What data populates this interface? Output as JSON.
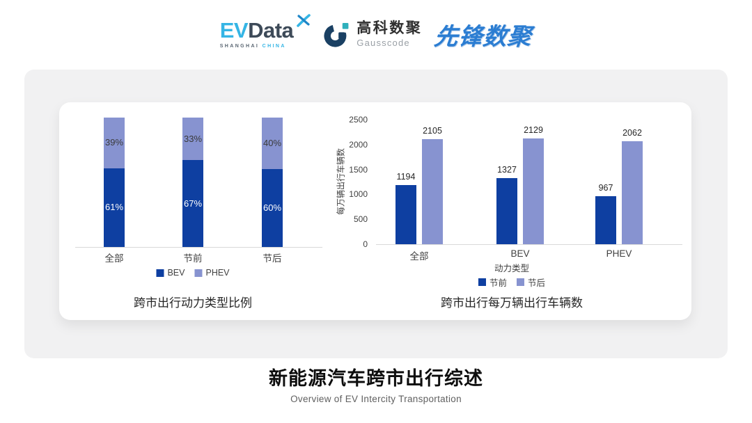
{
  "header": {
    "evdata_logo": {
      "part1": "EV",
      "part2": "Data",
      "sub_left": "SHANGHAI",
      "sub_right": "CHINA"
    },
    "gausscode_logo": {
      "name_cn": "高科数聚",
      "name_en": "Gausscode"
    },
    "pioneer_logo": {
      "text": "先锋数聚"
    }
  },
  "chart_data": [
    {
      "type": "bar",
      "variant": "stacked-percent",
      "title": "跨市出行动力类型比例",
      "categories": [
        "全部",
        "节前",
        "节后"
      ],
      "series": [
        {
          "name": "BEV",
          "values": [
            61,
            67,
            60
          ],
          "color": "#0e3fa1",
          "label_color": "#ffffff"
        },
        {
          "name": "PHEV",
          "values": [
            39,
            33,
            40
          ],
          "color": "#8793d0",
          "label_color": "#3a3a3a"
        }
      ],
      "value_suffix": "%",
      "ylim": [
        0,
        100
      ],
      "grid": false,
      "legend_position": "bottom"
    },
    {
      "type": "bar",
      "variant": "grouped",
      "title": "跨市出行每万辆出行车辆数",
      "xlabel": "动力类型",
      "ylabel": "每万辆出行车辆数",
      "categories": [
        "全部",
        "BEV",
        "PHEV"
      ],
      "series": [
        {
          "name": "节前",
          "values": [
            1194,
            1327,
            967
          ],
          "color": "#0e3fa1"
        },
        {
          "name": "节后",
          "values": [
            2105,
            2129,
            2062
          ],
          "color": "#8793d0"
        }
      ],
      "ylim": [
        0,
        2500
      ],
      "yticks": [
        0,
        500,
        1000,
        1500,
        2000,
        2500
      ],
      "grid": false,
      "legend_position": "bottom"
    }
  ],
  "footer": {
    "title": "新能源汽车跨市出行综述",
    "subtitle": "Overview of EV Intercity Transportation"
  },
  "colors": {
    "series_dark": "#0e3fa1",
    "series_light": "#8793d0",
    "axis_line": "#d9d9d9",
    "panel_bg": "#f1f1f2",
    "card_bg": "#ffffff",
    "evdata_blue": "#35b5e5",
    "evdata_dark": "#3d4a58",
    "gausscode_navy": "#1a4063",
    "gausscode_teal": "#2fb0bc",
    "pioneer_blue": "#2b7dd2"
  }
}
